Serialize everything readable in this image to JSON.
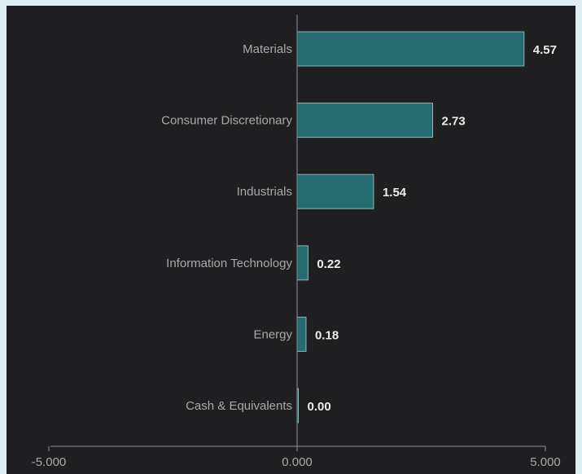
{
  "chart_data": {
    "type": "bar",
    "orientation": "horizontal",
    "categories": [
      "Materials",
      "Consumer Discretionary",
      "Industrials",
      "Information Technology",
      "Energy",
      "Cash & Equivalents"
    ],
    "values": [
      4.57,
      2.73,
      1.54,
      0.22,
      0.18,
      0.0
    ],
    "value_labels": [
      "4.57",
      "2.73",
      "1.54",
      "0.22",
      "0.18",
      "0.00"
    ],
    "xlim": [
      -5,
      5
    ],
    "x_ticks": [
      -5,
      0,
      5
    ],
    "x_tick_labels": [
      "-5.000",
      "0.000",
      "5.000"
    ],
    "title": "",
    "xlabel": "",
    "ylabel": "",
    "grid": false,
    "legend": "none",
    "colors": {
      "bar": "#256b70",
      "bar_stroke": "#8fb7ba",
      "axis": "#7e7e82",
      "background": "#1f1f21",
      "frame": "#dfeef2"
    }
  }
}
